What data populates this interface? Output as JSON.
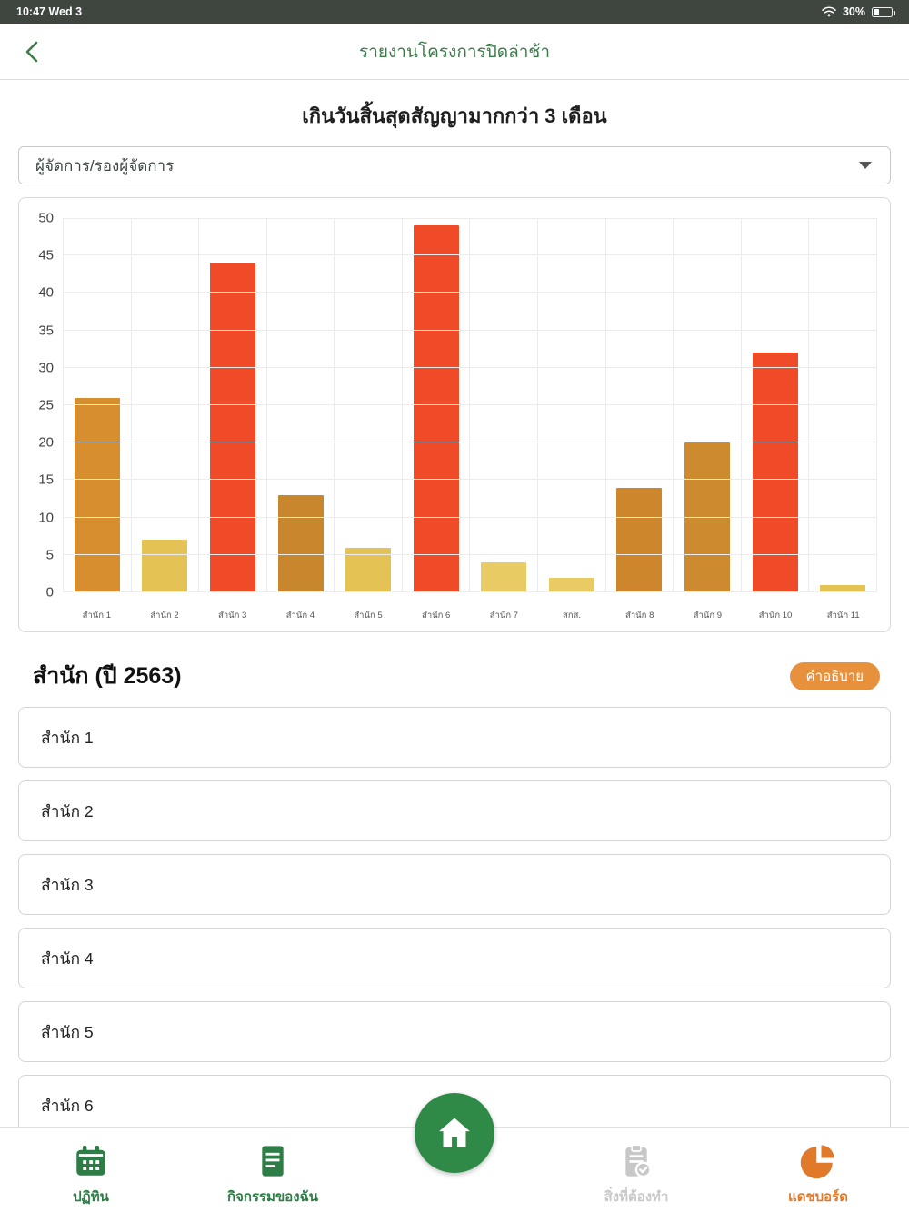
{
  "status_bar": {
    "time": "10:47  Wed 3",
    "battery_percent": "30%"
  },
  "nav": {
    "title": "รายงานโครงการปิดล่าช้า"
  },
  "page": {
    "subtitle": "เกินวันสิ้นสุดสัญญามากกว่า 3 เดือน"
  },
  "filter": {
    "selected": "ผู้จัดการ/รองผู้จัดการ"
  },
  "chart_data": {
    "type": "bar",
    "title": "เกินวันสิ้นสุดสัญญามากกว่า 3 เดือน",
    "categories": [
      "สำนัก 1",
      "สำนัก 2",
      "สำนัก 3",
      "สำนัก 4",
      "สำนัก 5",
      "สำนัก 6",
      "สำนัก 7",
      "สกส.",
      "สำนัก 8",
      "สำนัก 9",
      "สำนัก 10",
      "สำนัก 11"
    ],
    "values": [
      26,
      7,
      44,
      13,
      6,
      49,
      4,
      2,
      14,
      20,
      32,
      1
    ],
    "colors": [
      "#D78E2E",
      "#E4C253",
      "#F04B28",
      "#C8862D",
      "#E4C253",
      "#F04B28",
      "#E8CB63",
      "#E8CB63",
      "#CE862C",
      "#CE8A2E",
      "#F04B28",
      "#E4C253"
    ],
    "xlabel": "",
    "ylabel": "",
    "ylim": [
      0,
      50
    ],
    "ytick_step": 5,
    "grid": true,
    "legend": false
  },
  "section": {
    "title": "สำนัก (ปี 2563)",
    "legend_button": "คำอธิบาย"
  },
  "list": {
    "items": [
      "สำนัก 1",
      "สำนัก 2",
      "สำนัก 3",
      "สำนัก 4",
      "สำนัก 5",
      "สำนัก 6"
    ]
  },
  "tabbar": {
    "items": [
      {
        "label": "ปฏิทิน",
        "icon": "calendar-icon",
        "color": "#2E7D46",
        "active": false
      },
      {
        "label": "กิจกรรมของฉัน",
        "icon": "document-icon",
        "color": "#2E7D46",
        "active": false
      },
      {
        "label": "",
        "icon": "home-icon",
        "color": "#2F8A47",
        "active": false
      },
      {
        "label": "สิ่งที่ต้องทำ",
        "icon": "tasks-icon",
        "color": "#C8C8C8",
        "active": false
      },
      {
        "label": "แดชบอร์ด",
        "icon": "pie-chart-icon",
        "color": "#E07A2A",
        "active": true
      }
    ]
  },
  "colors": {
    "nav_green": "#3E7B4B",
    "accent_orange": "#E8913C",
    "home_green": "#2F8A47",
    "statusbar_bg": "#3E463F"
  }
}
